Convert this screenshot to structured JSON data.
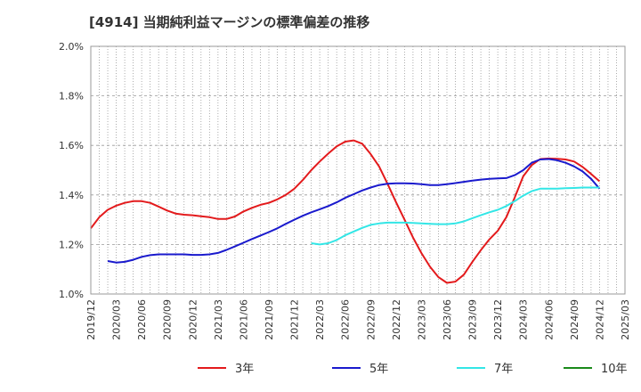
{
  "chart_data": {
    "type": "line",
    "title": "[4914]  当期純利益マージンの標準偏差の推移",
    "xlabel": "",
    "ylabel": "",
    "ylim": [
      1.0,
      2.0
    ],
    "y_ticks": [
      "1.0%",
      "1.2%",
      "1.4%",
      "1.6%",
      "1.8%",
      "2.0%"
    ],
    "x_ticks": [
      "2019/12",
      "2020/03",
      "2020/06",
      "2020/09",
      "2020/12",
      "2021/03",
      "2021/06",
      "2021/09",
      "2021/12",
      "2022/03",
      "2022/06",
      "2022/09",
      "2022/12",
      "2023/03",
      "2023/06",
      "2023/09",
      "2023/12",
      "2024/03",
      "2024/06",
      "2024/09",
      "2024/12",
      "2025/03"
    ],
    "grid": true,
    "legend_position": "bottom",
    "series": [
      {
        "name": "3年",
        "color": "#e31a1c",
        "x": [
          0,
          1,
          2,
          3,
          4,
          5,
          6,
          7,
          8,
          9,
          10,
          11,
          12,
          13,
          14,
          15,
          16,
          17,
          18,
          19,
          20,
          21,
          22,
          23,
          24,
          25,
          26,
          27,
          28,
          29,
          30,
          31,
          32,
          33,
          34,
          35,
          36,
          37,
          38,
          39,
          40,
          41,
          42,
          43,
          44,
          45,
          46,
          47,
          48,
          49,
          50,
          51,
          52,
          53,
          54,
          55,
          56,
          57,
          58,
          59,
          60
        ],
        "values": [
          1.265,
          1.31,
          1.34,
          1.357,
          1.368,
          1.375,
          1.375,
          1.368,
          1.353,
          1.337,
          1.325,
          1.32,
          1.318,
          1.314,
          1.31,
          1.303,
          1.303,
          1.313,
          1.333,
          1.348,
          1.36,
          1.368,
          1.382,
          1.4,
          1.425,
          1.46,
          1.5,
          1.535,
          1.567,
          1.596,
          1.615,
          1.62,
          1.607,
          1.565,
          1.515,
          1.445,
          1.37,
          1.3,
          1.228,
          1.165,
          1.11,
          1.068,
          1.045,
          1.05,
          1.078,
          1.13,
          1.177,
          1.22,
          1.255,
          1.31,
          1.39,
          1.475,
          1.52,
          1.545,
          1.547,
          1.546,
          1.543,
          1.535,
          1.513,
          1.485,
          1.455
        ]
      },
      {
        "name": "5年",
        "color": "#1a1acd",
        "x": [
          2,
          3,
          4,
          5,
          6,
          7,
          8,
          9,
          10,
          11,
          12,
          13,
          14,
          15,
          16,
          17,
          18,
          19,
          20,
          21,
          22,
          23,
          24,
          25,
          26,
          27,
          28,
          29,
          30,
          31,
          32,
          33,
          34,
          35,
          36,
          37,
          38,
          39,
          40,
          41,
          42,
          43,
          44,
          45,
          46,
          47,
          48,
          49,
          50,
          51,
          52,
          53,
          54,
          55,
          56,
          57,
          58,
          59,
          60
        ],
        "values": [
          1.133,
          1.127,
          1.13,
          1.138,
          1.15,
          1.157,
          1.16,
          1.16,
          1.16,
          1.16,
          1.158,
          1.158,
          1.16,
          1.166,
          1.178,
          1.192,
          1.207,
          1.222,
          1.236,
          1.25,
          1.265,
          1.283,
          1.3,
          1.316,
          1.33,
          1.342,
          1.355,
          1.37,
          1.388,
          1.403,
          1.418,
          1.43,
          1.44,
          1.445,
          1.447,
          1.447,
          1.446,
          1.443,
          1.44,
          1.44,
          1.443,
          1.448,
          1.453,
          1.458,
          1.462,
          1.465,
          1.467,
          1.468,
          1.48,
          1.5,
          1.53,
          1.543,
          1.545,
          1.54,
          1.53,
          1.515,
          1.495,
          1.465,
          1.425
        ]
      },
      {
        "name": "7年",
        "color": "#33e6e6",
        "x": [
          26,
          27,
          28,
          29,
          30,
          31,
          32,
          33,
          34,
          35,
          36,
          37,
          38,
          39,
          40,
          41,
          42,
          43,
          44,
          45,
          46,
          47,
          48,
          49,
          50,
          51,
          52,
          53,
          54,
          55,
          56,
          57,
          58,
          59,
          60
        ],
        "values": [
          1.205,
          1.2,
          1.205,
          1.218,
          1.237,
          1.252,
          1.267,
          1.279,
          1.285,
          1.288,
          1.288,
          1.288,
          1.287,
          1.285,
          1.283,
          1.282,
          1.282,
          1.285,
          1.293,
          1.306,
          1.318,
          1.33,
          1.34,
          1.355,
          1.375,
          1.397,
          1.415,
          1.425,
          1.425,
          1.425,
          1.427,
          1.428,
          1.43,
          1.43,
          1.43
        ]
      },
      {
        "name": "10年",
        "color": "#1a8a1a",
        "x": [],
        "values": []
      }
    ]
  }
}
